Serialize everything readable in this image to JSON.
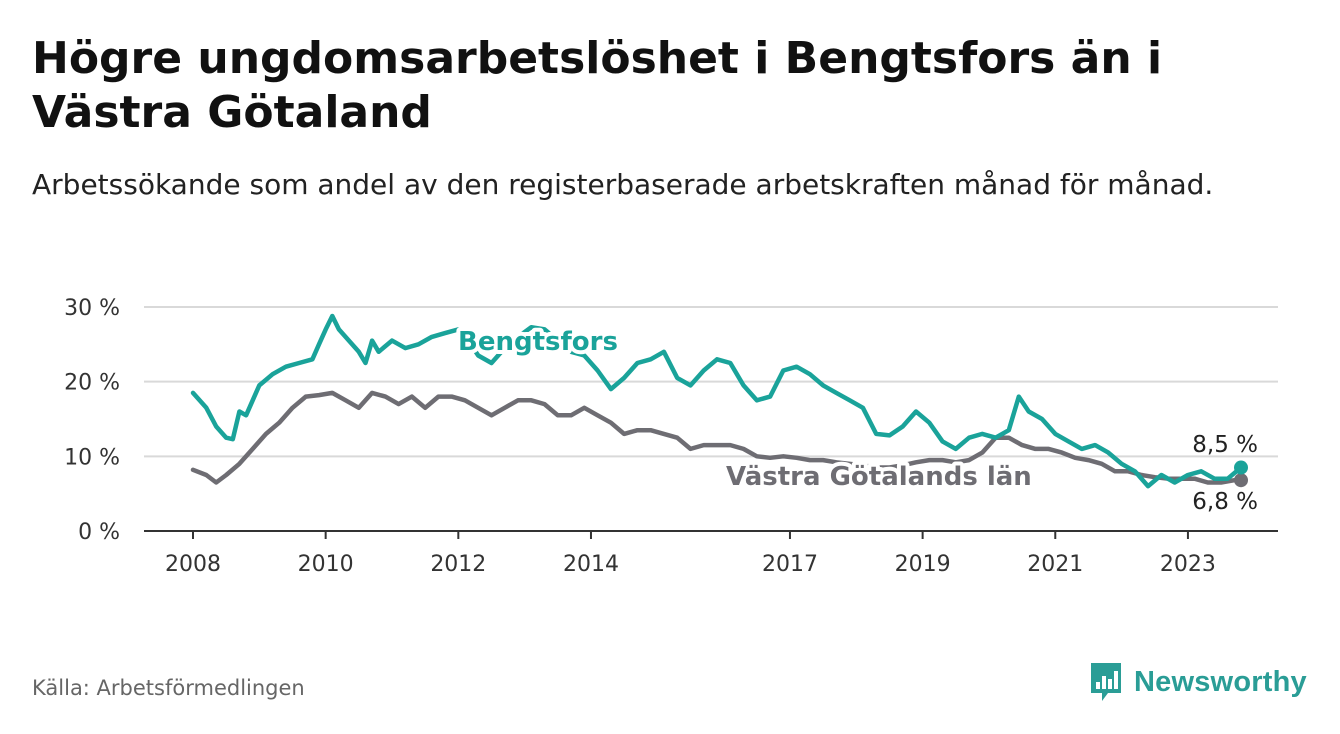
{
  "header": {
    "title": "Högre ungdomsarbetslöshet i Bengtsfors än i Västra Götaland",
    "subtitle": "Arbetssökande som andel av den registerbaserade arbetskraften månad för månad."
  },
  "footer": {
    "source": "Källa: Arbetsförmedlingen",
    "brand": "Newsworthy"
  },
  "colors": {
    "bengtsfors": "#1aa39a",
    "vastra_gotaland": "#6e6d73",
    "grid": "#d9d9d9",
    "axis": "#333333",
    "brand": "#2a9d96"
  },
  "chart_data": {
    "type": "line",
    "title": "Högre ungdomsarbetslöshet i Bengtsfors än i Västra Götaland",
    "ylim": [
      0,
      30
    ],
    "xlim": [
      2007.95,
      2024.0
    ],
    "yticks": [
      0,
      10,
      20,
      30
    ],
    "ytick_labels": [
      "0 %",
      "10 %",
      "20 %",
      "30 %"
    ],
    "xticks": [
      2008,
      2010,
      2012,
      2014,
      2017,
      2019,
      2021,
      2023
    ],
    "xtick_labels": [
      "2008",
      "2010",
      "2012",
      "2014",
      "2017",
      "2019",
      "2021",
      "2023"
    ],
    "grid": true,
    "series": [
      {
        "name": "Bengtsfors",
        "label_text": "Bengtsfors",
        "end_label": "8,5 %",
        "x": [
          2008.0,
          2008.2,
          2008.35,
          2008.5,
          2008.6,
          2008.7,
          2008.8,
          2008.9,
          2009.0,
          2009.2,
          2009.4,
          2009.6,
          2009.8,
          2009.9,
          2010.0,
          2010.1,
          2010.2,
          2010.35,
          2010.5,
          2010.6,
          2010.7,
          2010.8,
          2011.0,
          2011.2,
          2011.4,
          2011.6,
          2011.8,
          2012.0,
          2012.15,
          2012.3,
          2012.5,
          2012.7,
          2012.9,
          2013.1,
          2013.3,
          2013.5,
          2013.7,
          2013.9,
          2014.1,
          2014.3,
          2014.5,
          2014.7,
          2014.9,
          2015.1,
          2015.3,
          2015.5,
          2015.7,
          2015.9,
          2016.1,
          2016.3,
          2016.5,
          2016.7,
          2016.9,
          2017.1,
          2017.3,
          2017.5,
          2017.7,
          2017.9,
          2018.1,
          2018.3,
          2018.5,
          2018.7,
          2018.9,
          2019.1,
          2019.3,
          2019.5,
          2019.7,
          2019.9,
          2020.1,
          2020.3,
          2020.45,
          2020.6,
          2020.8,
          2021.0,
          2021.2,
          2021.4,
          2021.6,
          2021.8,
          2022.0,
          2022.2,
          2022.4,
          2022.6,
          2022.8,
          2023.0,
          2023.2,
          2023.4,
          2023.6,
          2023.8
        ],
        "values": [
          18.5,
          16.5,
          14.0,
          12.5,
          12.3,
          16.0,
          15.5,
          17.5,
          19.5,
          21.0,
          22.0,
          22.5,
          23.0,
          25.0,
          27.0,
          28.8,
          27.0,
          25.5,
          24.0,
          22.5,
          25.5,
          24.0,
          25.5,
          24.5,
          25.0,
          26.0,
          26.5,
          27.0,
          25.5,
          23.5,
          22.5,
          24.5,
          26.0,
          27.3,
          27.0,
          25.5,
          24.0,
          23.5,
          21.5,
          19.0,
          20.5,
          22.5,
          23.0,
          24.0,
          20.5,
          19.5,
          21.5,
          23.0,
          22.5,
          19.5,
          17.5,
          18.0,
          21.5,
          22.0,
          21.0,
          19.5,
          18.5,
          17.5,
          16.5,
          13.0,
          12.8,
          14.0,
          16.0,
          14.5,
          12.0,
          11.0,
          12.5,
          13.0,
          12.5,
          13.5,
          18.0,
          16.0,
          15.0,
          13.0,
          12.0,
          11.0,
          11.5,
          10.5,
          9.0,
          8.0,
          6.0,
          7.5,
          6.5,
          7.5,
          8.0,
          7.0,
          7.0,
          8.5
        ]
      },
      {
        "name": "Västra Götalands län",
        "label_text": "Västra Götalands län",
        "end_label": "6,8 %",
        "x": [
          2008.0,
          2008.2,
          2008.35,
          2008.5,
          2008.7,
          2008.9,
          2009.1,
          2009.3,
          2009.5,
          2009.7,
          2009.9,
          2010.1,
          2010.3,
          2010.5,
          2010.7,
          2010.9,
          2011.1,
          2011.3,
          2011.5,
          2011.7,
          2011.9,
          2012.1,
          2012.3,
          2012.5,
          2012.7,
          2012.9,
          2013.1,
          2013.3,
          2013.5,
          2013.7,
          2013.9,
          2014.1,
          2014.3,
          2014.5,
          2014.7,
          2014.9,
          2015.1,
          2015.3,
          2015.5,
          2015.7,
          2015.9,
          2016.1,
          2016.3,
          2016.5,
          2016.7,
          2016.9,
          2017.1,
          2017.3,
          2017.5,
          2017.7,
          2017.9,
          2018.1,
          2018.3,
          2018.5,
          2018.7,
          2018.9,
          2019.1,
          2019.3,
          2019.5,
          2019.7,
          2019.9,
          2020.1,
          2020.3,
          2020.5,
          2020.7,
          2020.9,
          2021.1,
          2021.3,
          2021.5,
          2021.7,
          2021.9,
          2022.1,
          2022.3,
          2022.5,
          2022.7,
          2022.9,
          2023.1,
          2023.3,
          2023.5,
          2023.7,
          2023.8
        ],
        "values": [
          8.2,
          7.5,
          6.5,
          7.5,
          9.0,
          11.0,
          13.0,
          14.5,
          16.5,
          18.0,
          18.2,
          18.5,
          17.5,
          16.5,
          18.5,
          18.0,
          17.0,
          18.0,
          16.5,
          18.0,
          18.0,
          17.5,
          16.5,
          15.5,
          16.5,
          17.5,
          17.5,
          17.0,
          15.5,
          15.5,
          16.5,
          15.5,
          14.5,
          13.0,
          13.5,
          13.5,
          13.0,
          12.5,
          11.0,
          11.5,
          11.5,
          11.5,
          11.0,
          10.0,
          9.8,
          10.0,
          9.8,
          9.5,
          9.5,
          9.2,
          9.0,
          8.8,
          8.5,
          8.5,
          8.8,
          9.2,
          9.5,
          9.5,
          9.2,
          9.5,
          10.5,
          12.5,
          12.5,
          11.5,
          11.0,
          11.0,
          10.5,
          9.8,
          9.5,
          9.0,
          8.0,
          8.0,
          7.5,
          7.2,
          7.0,
          7.0,
          7.0,
          6.5,
          6.5,
          6.8,
          6.8
        ]
      }
    ]
  }
}
